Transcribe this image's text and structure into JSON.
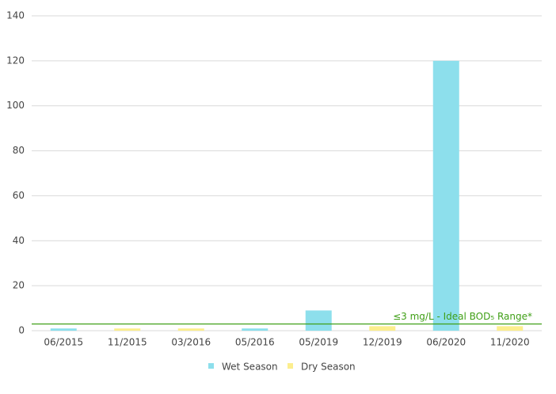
{
  "chart_data": {
    "type": "bar",
    "categories": [
      "06/2015",
      "11/2015",
      "03/2016",
      "05/2016",
      "05/2019",
      "12/2019",
      "06/2020",
      "11/2020"
    ],
    "series": [
      {
        "name": "Wet Season",
        "color": "#8ddfec",
        "values": [
          1,
          null,
          null,
          1,
          9,
          null,
          120,
          null
        ]
      },
      {
        "name": "Dry Season",
        "color": "#fcee8e",
        "values": [
          null,
          1,
          1,
          null,
          null,
          2,
          null,
          2
        ]
      }
    ],
    "ylim": [
      0,
      140
    ],
    "yticks": [
      0,
      20,
      40,
      60,
      80,
      100,
      120,
      140
    ],
    "grid": true,
    "reference_line": {
      "value": 3,
      "label": "≤3 mg/L - Ideal BOD₅ Range*",
      "color": "#3f9f16"
    },
    "legend": "bottom"
  }
}
